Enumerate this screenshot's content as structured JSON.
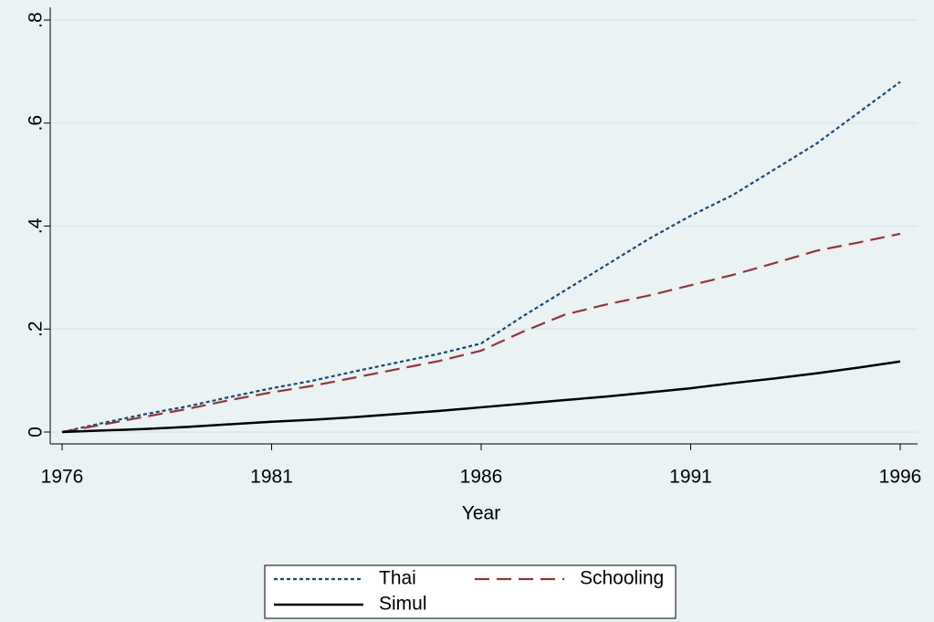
{
  "chart_data": {
    "type": "line",
    "x_label": "Year",
    "x": [
      1976,
      1977,
      1978,
      1979,
      1980,
      1981,
      1982,
      1983,
      1984,
      1985,
      1986,
      1987,
      1988,
      1989,
      1990,
      1991,
      1992,
      1993,
      1994,
      1995,
      1996
    ],
    "series": [
      {
        "name": "Thai",
        "color": "#1a476f",
        "dash": "dotted",
        "values": [
          0,
          0.018,
          0.035,
          0.05,
          0.068,
          0.085,
          0.1,
          0.118,
          0.135,
          0.152,
          0.172,
          0.225,
          0.275,
          0.325,
          0.375,
          0.42,
          0.46,
          0.51,
          0.56,
          0.62,
          0.68
        ]
      },
      {
        "name": "Schooling",
        "color": "#90353b",
        "dash": "dashed",
        "values": [
          0,
          0.015,
          0.03,
          0.045,
          0.062,
          0.077,
          0.09,
          0.106,
          0.122,
          0.138,
          0.158,
          0.195,
          0.228,
          0.248,
          0.265,
          0.285,
          0.305,
          0.328,
          0.352,
          0.368,
          0.385
        ]
      },
      {
        "name": "Simul",
        "color": "#000000",
        "dash": "solid",
        "values": [
          0,
          0.003,
          0.006,
          0.01,
          0.015,
          0.02,
          0.024,
          0.029,
          0.035,
          0.041,
          0.048,
          0.055,
          0.062,
          0.069,
          0.077,
          0.085,
          0.095,
          0.104,
          0.114,
          0.125,
          0.137
        ]
      }
    ],
    "xlim": [
      1976,
      1996
    ],
    "xticks": [
      1976,
      1981,
      1986,
      1991,
      1996
    ],
    "ylim": [
      0,
      0.8
    ],
    "yticks": [
      0,
      {
        "value": 0.2,
        "label": ".2"
      },
      {
        "value": 0.4,
        "label": ".4"
      },
      {
        "value": 0.6,
        "label": ".6"
      },
      {
        "value": 0.8,
        "label": ".8"
      }
    ],
    "grid": true,
    "legend": "bottom"
  }
}
